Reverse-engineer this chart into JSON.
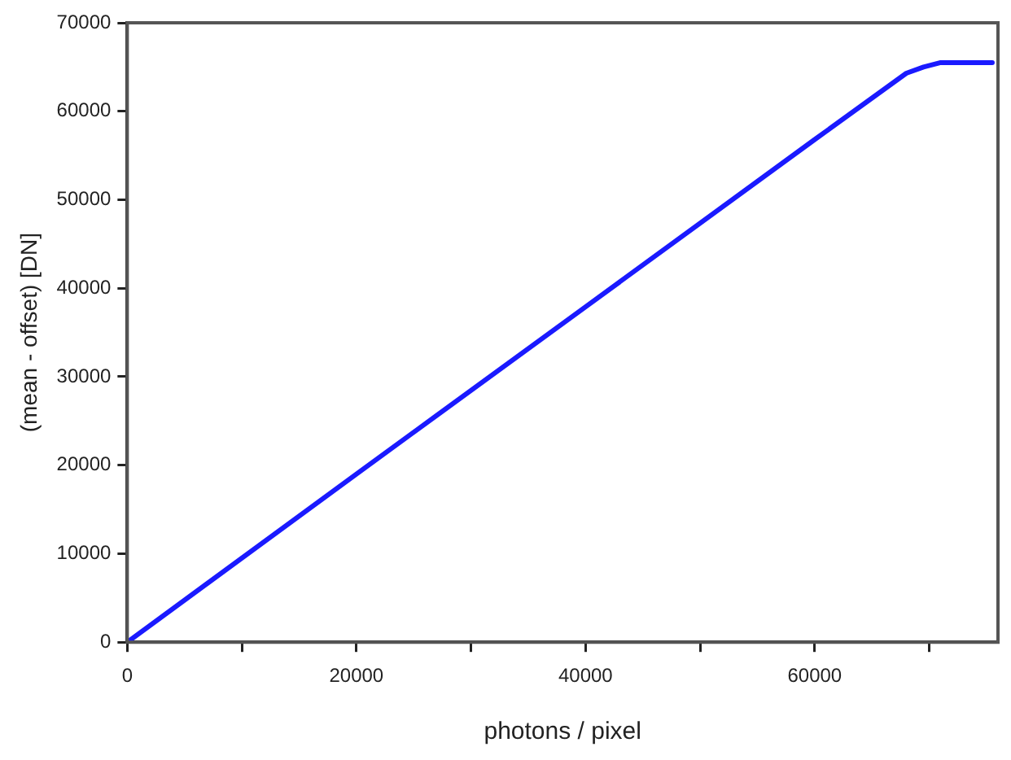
{
  "chart_data": {
    "type": "line",
    "xlabel": "photons / pixel",
    "ylabel": "(mean - offset) [DN]",
    "x": [
      0,
      20000,
      40000,
      60000,
      68000,
      69500,
      71000,
      75500
    ],
    "series": [
      {
        "color": "#1a1aff",
        "values": [
          0,
          19000,
          37900,
          56800,
          64300,
          65000,
          65500,
          65500
        ]
      }
    ],
    "xlim": [
      0,
      76000
    ],
    "xticks": [
      0,
      {
        "value": 10000,
        "label": null
      },
      20000,
      {
        "value": 30000,
        "label": null
      },
      40000,
      {
        "value": 50000,
        "label": null
      },
      60000,
      {
        "value": 70000,
        "label": null
      }
    ],
    "ylim": [
      0,
      70000
    ],
    "yticks": [
      0,
      10000,
      20000,
      30000,
      40000,
      50000,
      60000,
      70000
    ],
    "grid": false,
    "legend": false,
    "marker": "none",
    "line_style": "solid"
  }
}
